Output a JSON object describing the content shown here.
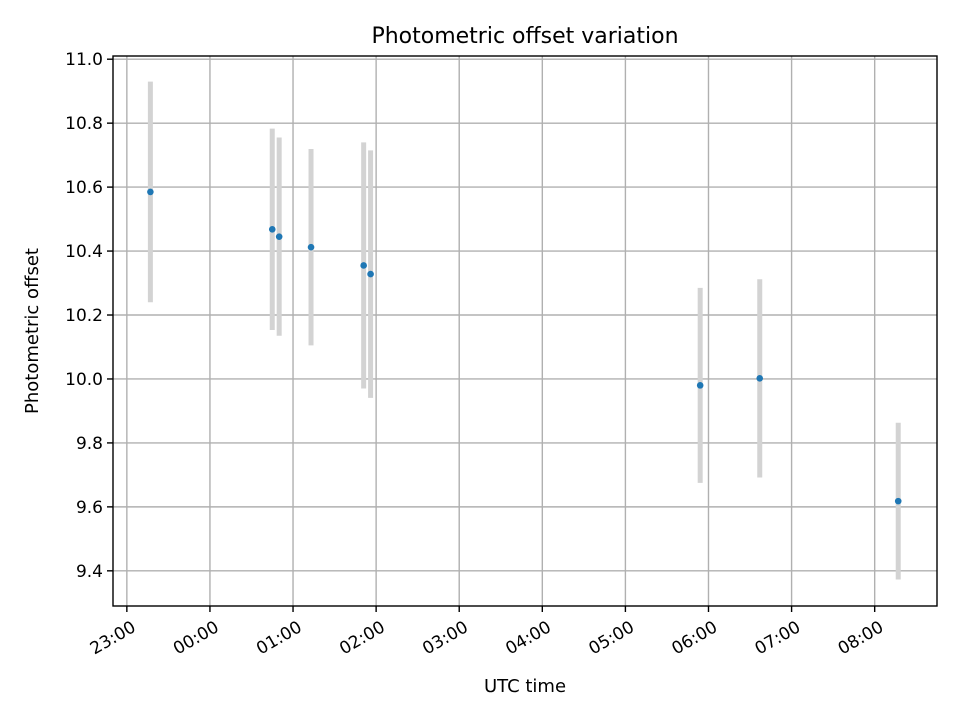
{
  "chart_data": {
    "type": "scatter",
    "title": "Photometric offset variation",
    "xlabel": "UTC time",
    "ylabel": "Photometric offset",
    "x_tick_labels": [
      "23:00",
      "00:00",
      "01:00",
      "02:00",
      "03:00",
      "04:00",
      "05:00",
      "06:00",
      "07:00",
      "08:00"
    ],
    "y_tick_labels": [
      "9.4",
      "9.6",
      "9.8",
      "10.0",
      "10.2",
      "10.4",
      "10.6",
      "10.8",
      "11.0"
    ],
    "xlim": [
      "22:50",
      "08:45"
    ],
    "ylim": [
      9.29,
      11.01
    ],
    "grid": true,
    "colors": {
      "point": "#1f77b4",
      "errorbar": "#d3d3d3"
    },
    "points": [
      {
        "time": "23:17",
        "value": 10.585,
        "error": 0.345
      },
      {
        "time": "00:45",
        "value": 10.468,
        "error": 0.315
      },
      {
        "time": "00:50",
        "value": 10.445,
        "error": 0.31
      },
      {
        "time": "01:13",
        "value": 10.412,
        "error": 0.307
      },
      {
        "time": "01:51",
        "value": 10.355,
        "error": 0.385
      },
      {
        "time": "01:56",
        "value": 10.328,
        "error": 0.387
      },
      {
        "time": "05:54",
        "value": 9.98,
        "error": 0.305
      },
      {
        "time": "06:37",
        "value": 10.002,
        "error": 0.31
      },
      {
        "time": "08:17",
        "value": 9.618,
        "error": 0.245
      }
    ]
  }
}
